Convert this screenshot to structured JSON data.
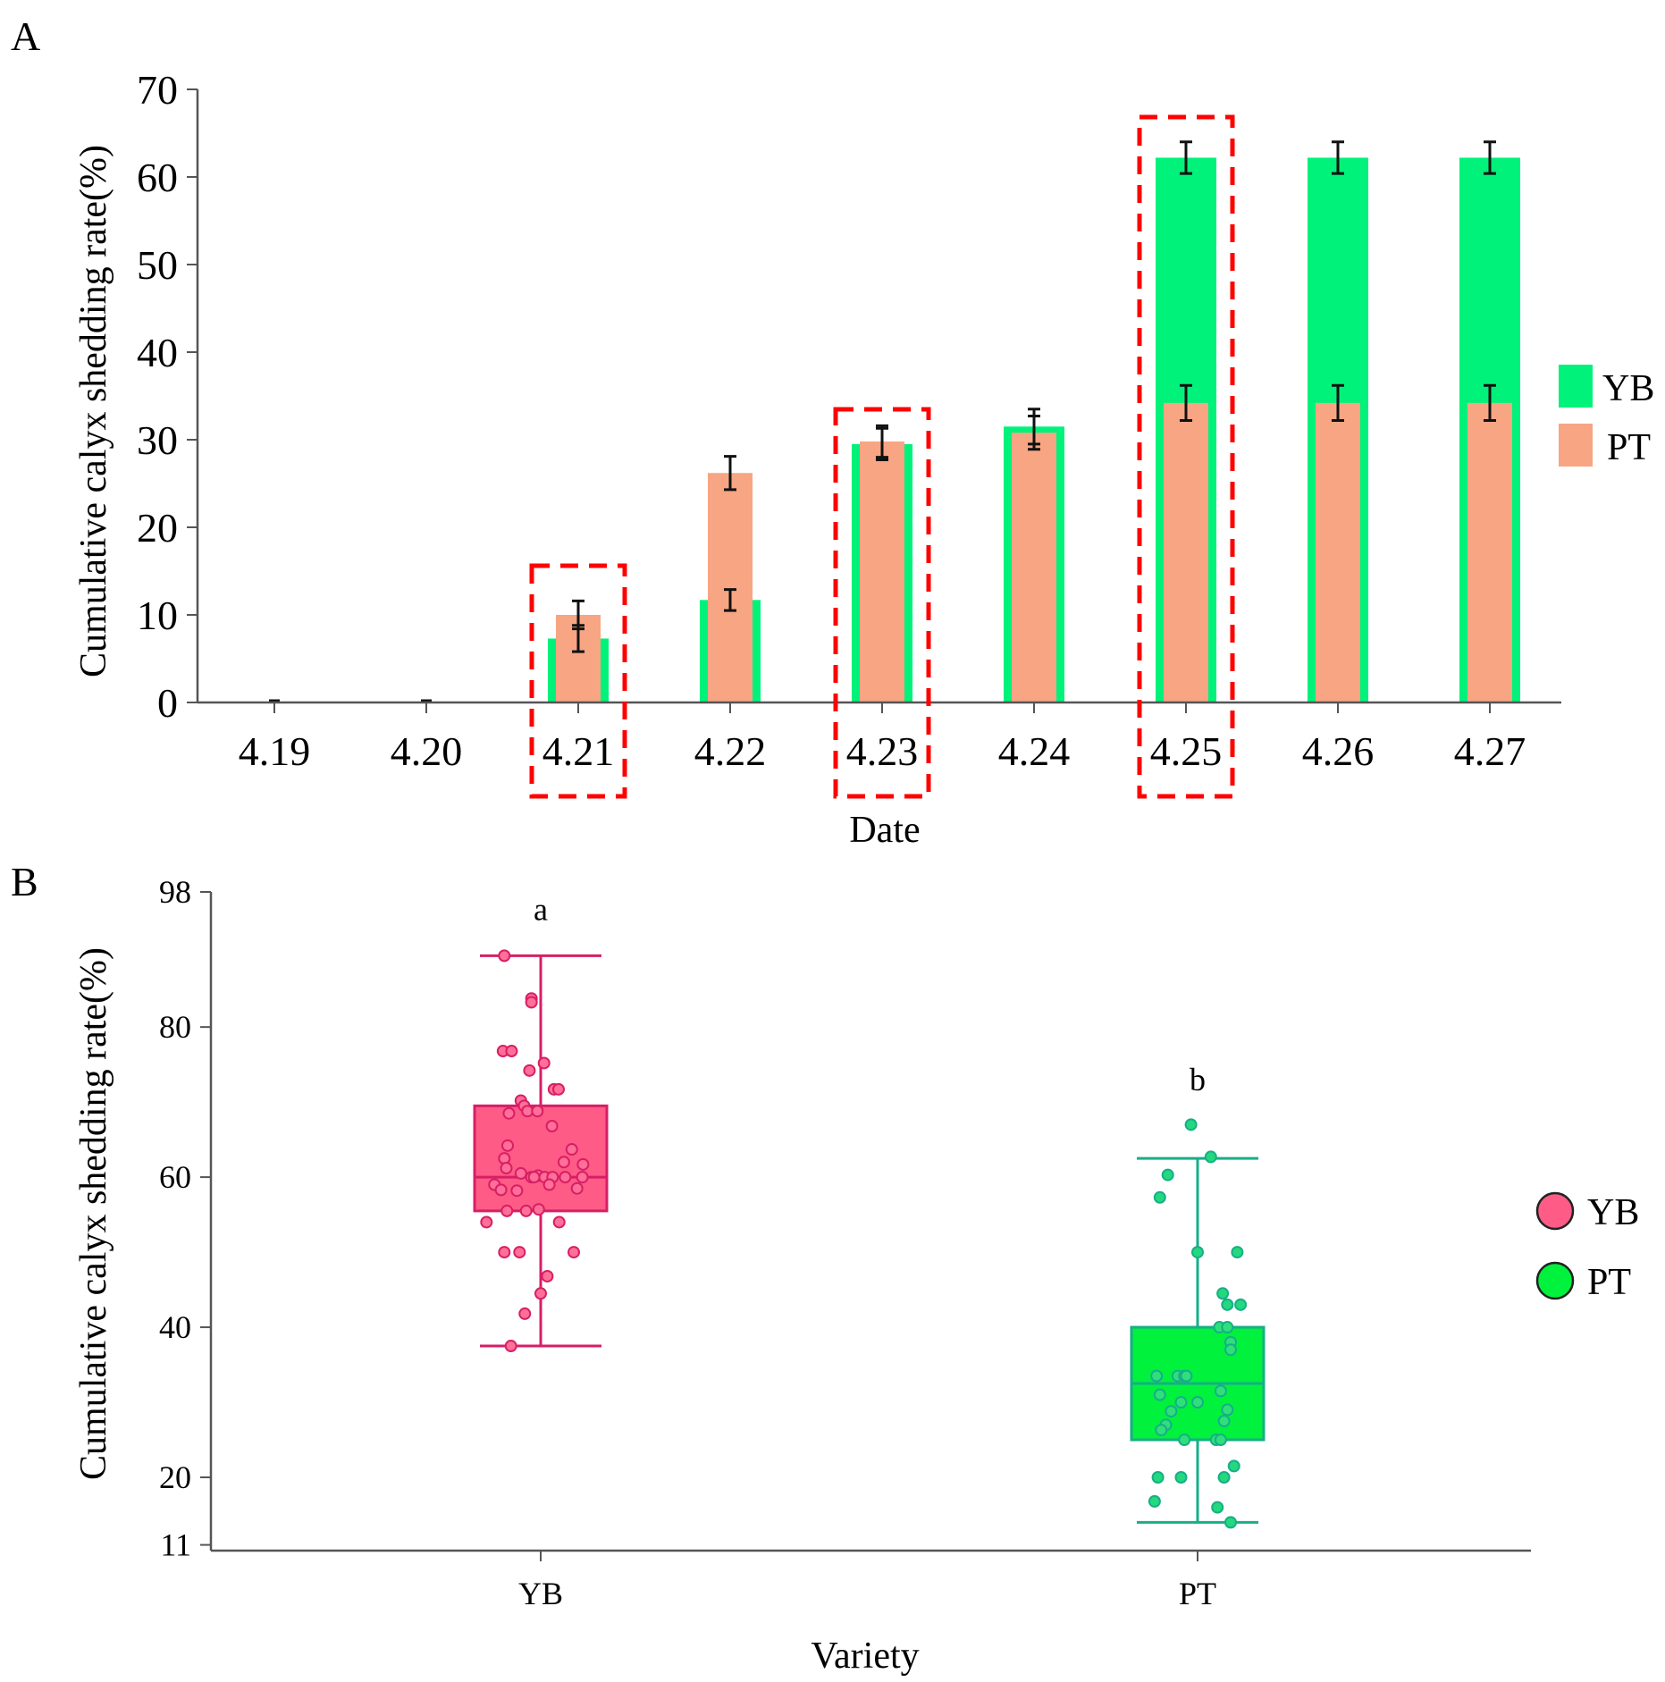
{
  "chart_data": [
    {
      "panel": "A",
      "type": "bar",
      "xlabel": "Date",
      "ylabel": "Cumulative calyx shedding rate(%)",
      "ylim": [
        0,
        70
      ],
      "yticks": [
        "0",
        "10",
        "20",
        "30",
        "40",
        "50",
        "60",
        "70"
      ],
      "categories": [
        "4.19",
        "4.20",
        "4.21",
        "4.22",
        "4.23",
        "4.24",
        "4.25",
        "4.26",
        "4.27"
      ],
      "series": [
        {
          "name": "YB",
          "color": "#00f27a",
          "values": [
            0,
            0,
            7.3,
            11.7,
            29.5,
            31.5,
            62.2,
            62.2,
            62.2
          ],
          "errors": [
            0,
            0,
            1.5,
            1.2,
            1.8,
            2.0,
            1.8,
            1.8,
            1.8
          ]
        },
        {
          "name": "PT",
          "color": "#f7a583",
          "values": [
            0,
            0,
            10.0,
            26.2,
            29.8,
            30.8,
            34.2,
            34.2,
            34.2
          ],
          "errors": [
            0,
            0,
            1.6,
            1.9,
            1.8,
            1.9,
            2.0,
            2.0,
            2.0
          ]
        }
      ],
      "highlighted_categories": [
        "4.21",
        "4.23",
        "4.25"
      ],
      "highlight_color": "#ff0000",
      "legend": [
        "YB",
        "PT"
      ]
    },
    {
      "panel": "B",
      "type": "box",
      "xlabel": "Variety",
      "ylabel": "Cumulative calyx shedding rate(%)",
      "ylim": [
        11,
        98
      ],
      "yticks": [
        "11",
        "20",
        "40",
        "60",
        "80",
        "98"
      ],
      "categories": [
        "YB",
        "PT"
      ],
      "boxes": [
        {
          "name": "YB",
          "color": "#fe5b86",
          "edge": "#d81e66",
          "min": 37.5,
          "q1": 55.5,
          "median": 60,
          "q3": 69.5,
          "max": 89.5,
          "letter": "a",
          "points": [
            [
              -0.55,
              89.5
            ],
            [
              -0.14,
              83.8
            ],
            [
              -0.14,
              83.3
            ],
            [
              -0.57,
              76.8
            ],
            [
              -0.44,
              76.8
            ],
            [
              0.05,
              75.2
            ],
            [
              -0.17,
              74.2
            ],
            [
              0.2,
              71.7
            ],
            [
              0.27,
              71.7
            ],
            [
              -0.3,
              70.2
            ],
            [
              -0.25,
              69.5
            ],
            [
              -0.2,
              68.8
            ],
            [
              -0.05,
              68.8
            ],
            [
              -0.48,
              68.5
            ],
            [
              0.17,
              66.8
            ],
            [
              -0.5,
              64.2
            ],
            [
              0.47,
              63.7
            ],
            [
              -0.55,
              62.5
            ],
            [
              0.35,
              62
            ],
            [
              0.64,
              61.7
            ],
            [
              -0.52,
              61.2
            ],
            [
              -0.3,
              60.5
            ],
            [
              -0.04,
              60.2
            ],
            [
              -0.14,
              60
            ],
            [
              -0.1,
              60
            ],
            [
              0.06,
              60
            ],
            [
              0.18,
              60
            ],
            [
              0.37,
              60
            ],
            [
              0.63,
              60
            ],
            [
              -0.7,
              59
            ],
            [
              0.13,
              59
            ],
            [
              0.55,
              58.5
            ],
            [
              -0.6,
              58.3
            ],
            [
              -0.36,
              58.2
            ],
            [
              -0.51,
              55.5
            ],
            [
              -0.22,
              55.5
            ],
            [
              -0.03,
              55.7
            ],
            [
              0.28,
              54
            ],
            [
              -0.82,
              54
            ],
            [
              -0.55,
              50
            ],
            [
              -0.32,
              50
            ],
            [
              0.5,
              50
            ],
            [
              0.1,
              46.8
            ],
            [
              0,
              44.5
            ],
            [
              -0.24,
              41.8
            ],
            [
              -0.45,
              37.5
            ]
          ]
        },
        {
          "name": "PT",
          "color": "#00f23d",
          "edge": "#17ae88",
          "min": 14,
          "q1": 25,
          "median": 32.5,
          "q3": 40,
          "max": 62.5,
          "letter": "b",
          "points": [
            [
              -0.1,
              67
            ],
            [
              0.2,
              62.7
            ],
            [
              -0.45,
              60.3
            ],
            [
              -0.57,
              57.3
            ],
            [
              0,
              50
            ],
            [
              0.6,
              50
            ],
            [
              0.38,
              44.5
            ],
            [
              0.45,
              43
            ],
            [
              0.65,
              43
            ],
            [
              0.33,
              40
            ],
            [
              0.45,
              40
            ],
            [
              0.5,
              38
            ],
            [
              0.5,
              37
            ],
            [
              -0.62,
              33.5
            ],
            [
              -0.3,
              33.5
            ],
            [
              -0.2,
              33.5
            ],
            [
              -0.17,
              33.5
            ],
            [
              0.35,
              31.5
            ],
            [
              -0.57,
              31
            ],
            [
              0,
              30
            ],
            [
              -0.25,
              30
            ],
            [
              0.45,
              29
            ],
            [
              -0.4,
              28.8
            ],
            [
              -0.48,
              27
            ],
            [
              -0.55,
              26.3
            ],
            [
              0.4,
              27.5
            ],
            [
              -0.2,
              25
            ],
            [
              0.28,
              25
            ],
            [
              0.35,
              25
            ],
            [
              -0.6,
              20
            ],
            [
              -0.25,
              20
            ],
            [
              0.4,
              20
            ],
            [
              0.55,
              21.5
            ],
            [
              -0.65,
              16.8
            ],
            [
              0.3,
              16
            ],
            [
              0.5,
              14
            ]
          ]
        }
      ],
      "legend": [
        "YB",
        "PT"
      ]
    }
  ],
  "panels": {
    "a": "A",
    "b": "B"
  }
}
